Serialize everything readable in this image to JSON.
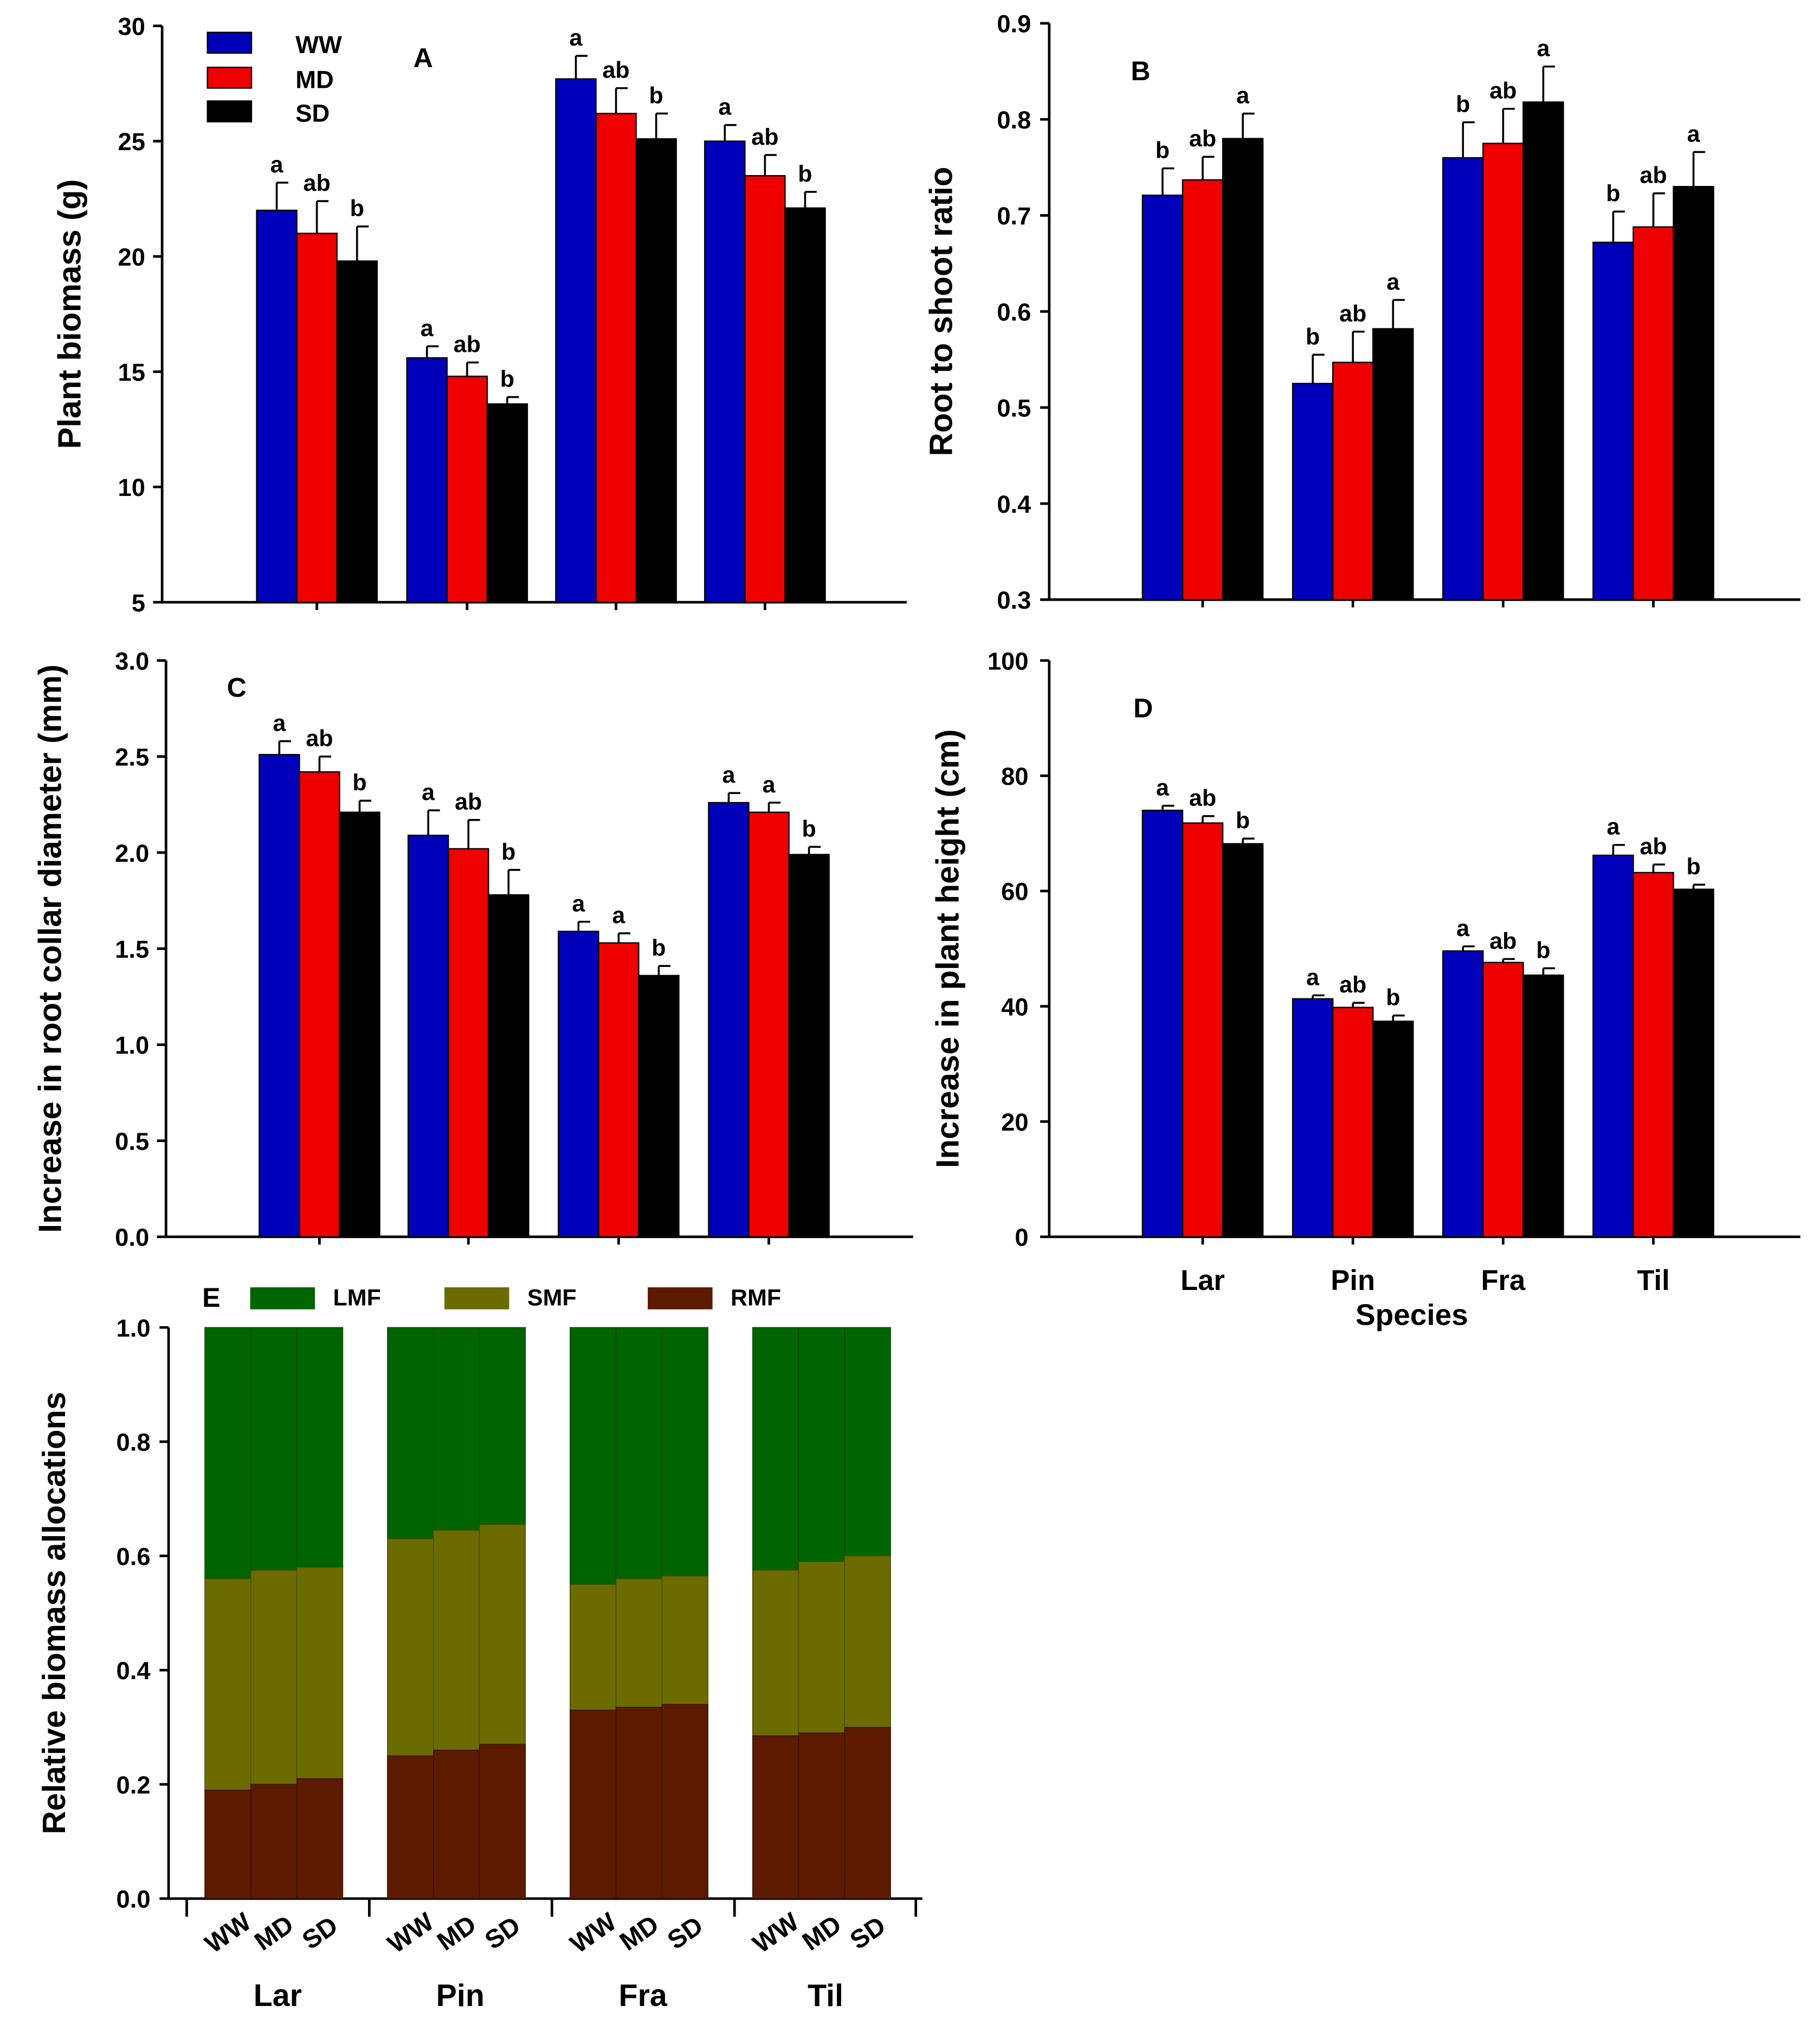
{
  "colors": {
    "WW": "#0000bb",
    "MD": "#ee0000",
    "SD": "#000000",
    "LMF": "#006400",
    "SMF": "#6b6b00",
    "RMF": "#5c1a00"
  },
  "legend": {
    "treatments": [
      "WW",
      "MD",
      "SD"
    ],
    "allocation": [
      "LMF",
      "SMF",
      "RMF"
    ]
  },
  "species_axis_label": "Species",
  "chart_data": [
    {
      "panel": "A",
      "type": "bar",
      "ylabel": "Plant biomass (g)",
      "ylim": [
        5,
        30
      ],
      "yticks": [
        "5",
        "10",
        "15",
        "20",
        "25",
        "30"
      ],
      "categories": [
        "Lar",
        "Pin",
        "Fra",
        "Til"
      ],
      "series": [
        {
          "name": "WW",
          "values": [
            22.0,
            15.6,
            27.7,
            25.0
          ],
          "err": [
            1.2,
            0.5,
            1.0,
            0.7
          ],
          "letters": [
            "a",
            "a",
            "a",
            "a"
          ]
        },
        {
          "name": "MD",
          "values": [
            21.0,
            14.8,
            26.2,
            23.5
          ],
          "err": [
            1.4,
            0.6,
            1.1,
            0.9
          ],
          "letters": [
            "ab",
            "ab",
            "ab",
            "ab"
          ]
        },
        {
          "name": "SD",
          "values": [
            19.8,
            13.6,
            25.1,
            22.1
          ],
          "err": [
            1.5,
            0.3,
            1.1,
            0.7
          ],
          "letters": [
            "b",
            "b",
            "b",
            "b"
          ]
        }
      ]
    },
    {
      "panel": "B",
      "type": "bar",
      "ylabel": "Root to shoot ratio",
      "ylim": [
        0.3,
        0.9
      ],
      "yticks": [
        "0.3",
        "0.4",
        "0.5",
        "0.6",
        "0.7",
        "0.8",
        "0.9"
      ],
      "categories": [
        "Lar",
        "Pin",
        "Fra",
        "Til"
      ],
      "series": [
        {
          "name": "WW",
          "values": [
            0.721,
            0.525,
            0.76,
            0.672
          ],
          "err": [
            0.028,
            0.03,
            0.037,
            0.032
          ],
          "letters": [
            "b",
            "b",
            "b",
            "b"
          ]
        },
        {
          "name": "MD",
          "values": [
            0.737,
            0.547,
            0.775,
            0.688
          ],
          "err": [
            0.024,
            0.032,
            0.036,
            0.035
          ],
          "letters": [
            "ab",
            "ab",
            "ab",
            "ab"
          ]
        },
        {
          "name": "SD",
          "values": [
            0.78,
            0.582,
            0.818,
            0.73
          ],
          "err": [
            0.026,
            0.03,
            0.037,
            0.036
          ],
          "letters": [
            "a",
            "a",
            "a",
            "a"
          ]
        }
      ]
    },
    {
      "panel": "C",
      "type": "bar",
      "ylabel": "Increase in root collar diameter (mm)",
      "ylim": [
        0,
        3
      ],
      "yticks": [
        "0.0",
        "0.5",
        "1.0",
        "1.5",
        "2.0",
        "2.5",
        "3.0"
      ],
      "categories": [
        "Lar",
        "Pin",
        "Fra",
        "Til"
      ],
      "series": [
        {
          "name": "WW",
          "values": [
            2.51,
            2.09,
            1.59,
            2.26
          ],
          "err": [
            0.07,
            0.13,
            0.05,
            0.05
          ],
          "letters": [
            "a",
            "a",
            "a",
            "a"
          ]
        },
        {
          "name": "MD",
          "values": [
            2.42,
            2.02,
            1.53,
            2.21
          ],
          "err": [
            0.08,
            0.15,
            0.05,
            0.05
          ],
          "letters": [
            "ab",
            "ab",
            "a",
            "a"
          ]
        },
        {
          "name": "SD",
          "values": [
            2.21,
            1.78,
            1.36,
            1.99
          ],
          "err": [
            0.06,
            0.13,
            0.05,
            0.04
          ],
          "letters": [
            "b",
            "b",
            "b",
            "b"
          ]
        }
      ]
    },
    {
      "panel": "D",
      "type": "bar",
      "ylabel": "Increase in plant height (cm)",
      "xlabel": "Species",
      "ylim": [
        0,
        100
      ],
      "yticks": [
        "0",
        "20",
        "40",
        "60",
        "80",
        "100"
      ],
      "categories": [
        "Lar",
        "Pin",
        "Fra",
        "Til"
      ],
      "series": [
        {
          "name": "WW",
          "values": [
            74.0,
            41.3,
            49.6,
            66.2
          ],
          "err": [
            0.8,
            0.6,
            0.8,
            1.8
          ],
          "letters": [
            "a",
            "a",
            "a",
            "a"
          ]
        },
        {
          "name": "MD",
          "values": [
            71.8,
            39.8,
            47.6,
            63.2
          ],
          "err": [
            1.2,
            0.8,
            0.6,
            1.4
          ],
          "letters": [
            "ab",
            "ab",
            "ab",
            "ab"
          ]
        },
        {
          "name": "SD",
          "values": [
            68.2,
            37.4,
            45.4,
            60.3
          ],
          "err": [
            0.9,
            1.0,
            1.2,
            0.8
          ],
          "letters": [
            "b",
            "b",
            "b",
            "b"
          ]
        }
      ]
    },
    {
      "panel": "E",
      "type": "bar",
      "stacked": true,
      "ylabel": "Relative biomass allocations",
      "ylim": [
        0,
        1
      ],
      "yticks": [
        "0.0",
        "0.2",
        "0.4",
        "0.6",
        "0.8",
        "1.0"
      ],
      "groups": [
        "Lar",
        "Pin",
        "Fra",
        "Til"
      ],
      "treatments": [
        "WW",
        "MD",
        "SD"
      ],
      "stack_order": [
        "RMF",
        "SMF",
        "LMF"
      ],
      "cumulative": {
        "RMF": [
          [
            0.19,
            0.2,
            0.21
          ],
          [
            0.25,
            0.26,
            0.27
          ],
          [
            0.33,
            0.335,
            0.34
          ],
          [
            0.285,
            0.29,
            0.3
          ]
        ],
        "RMF+SMF": [
          [
            0.56,
            0.575,
            0.58
          ],
          [
            0.63,
            0.645,
            0.655
          ],
          [
            0.55,
            0.56,
            0.565
          ],
          [
            0.575,
            0.59,
            0.6
          ]
        ]
      }
    }
  ]
}
